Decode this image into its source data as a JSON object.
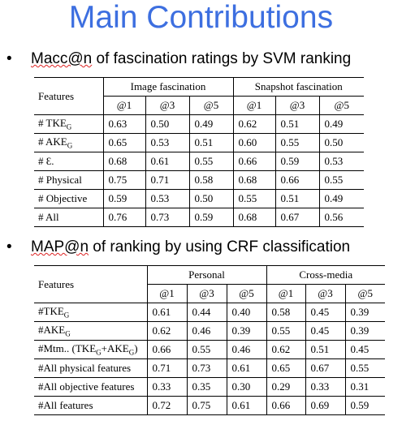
{
  "slide": {
    "title": "Main Contributions"
  },
  "bullet1": {
    "dot": "•",
    "text_underlined": "Macc@n",
    "text_rest": " of fascination ratings by SVM ranking"
  },
  "bullet2": {
    "dot": "•",
    "text_underlined": "MAP@n",
    "text_rest": " of ranking by using CRF classification"
  },
  "table1": {
    "features_header": "Features",
    "group1": "Image fascination",
    "group2": "Snapshot fascination",
    "sub_headers": [
      "@1",
      "@3",
      "@5",
      "@1",
      "@3",
      "@5"
    ],
    "rows": [
      {
        "label": "# TKE",
        "sub": "G",
        "label_suffix": "",
        "values": [
          "0.63",
          "0.50",
          "0.49",
          "0.62",
          "0.51",
          "0.49"
        ]
      },
      {
        "label": "# AKE",
        "sub": "G",
        "label_suffix": "",
        "values": [
          "0.65",
          "0.53",
          "0.51",
          "0.60",
          "0.55",
          "0.50"
        ]
      },
      {
        "label": "# Ɛ.",
        "sub": "",
        "label_suffix": "",
        "values": [
          "0.68",
          "0.61",
          "0.55",
          "0.66",
          "0.59",
          "0.53"
        ]
      },
      {
        "label": "# Physical",
        "sub": "",
        "label_suffix": "",
        "values": [
          "0.75",
          "0.71",
          "0.58",
          "0.68",
          "0.66",
          "0.55"
        ]
      },
      {
        "label": "# Objective",
        "sub": "",
        "label_suffix": "",
        "values": [
          "0.59",
          "0.53",
          "0.50",
          "0.55",
          "0.51",
          "0.49"
        ]
      },
      {
        "label": "# All",
        "sub": "",
        "label_suffix": "",
        "values": [
          "0.76",
          "0.73",
          "0.59",
          "0.68",
          "0.67",
          "0.56"
        ]
      }
    ]
  },
  "table2": {
    "features_header": "Features",
    "group1": "Personal",
    "group2": "Cross-media",
    "sub_headers": [
      "@1",
      "@3",
      "@5",
      "@1",
      "@3",
      "@5"
    ],
    "rows": [
      {
        "label": "#TKE",
        "sub": "G",
        "label_suffix": "",
        "values": [
          "0.61",
          "0.44",
          "0.40",
          "0.58",
          "0.45",
          "0.39"
        ]
      },
      {
        "label": "#AKE",
        "sub": "G",
        "label_suffix": "",
        "values": [
          "0.62",
          "0.46",
          "0.39",
          "0.55",
          "0.45",
          "0.39"
        ]
      },
      {
        "label": "#Mtm.. (TKE",
        "sub": "G",
        "label_mid": "+AKE",
        "sub2": "G",
        "label_suffix": ")",
        "values": [
          "0.66",
          "0.55",
          "0.46",
          "0.62",
          "0.51",
          "0.45"
        ]
      },
      {
        "label": "#All physical features",
        "sub": "",
        "label_suffix": "",
        "values": [
          "0.71",
          "0.73",
          "0.61",
          "0.65",
          "0.67",
          "0.55"
        ]
      },
      {
        "label": "#All objective features",
        "sub": "",
        "label_suffix": "",
        "values": [
          "0.33",
          "0.35",
          "0.30",
          "0.29",
          "0.33",
          "0.31"
        ]
      },
      {
        "label": "#All features",
        "sub": "",
        "label_suffix": "",
        "values": [
          "0.72",
          "0.75",
          "0.61",
          "0.66",
          "0.69",
          "0.59"
        ]
      }
    ]
  }
}
